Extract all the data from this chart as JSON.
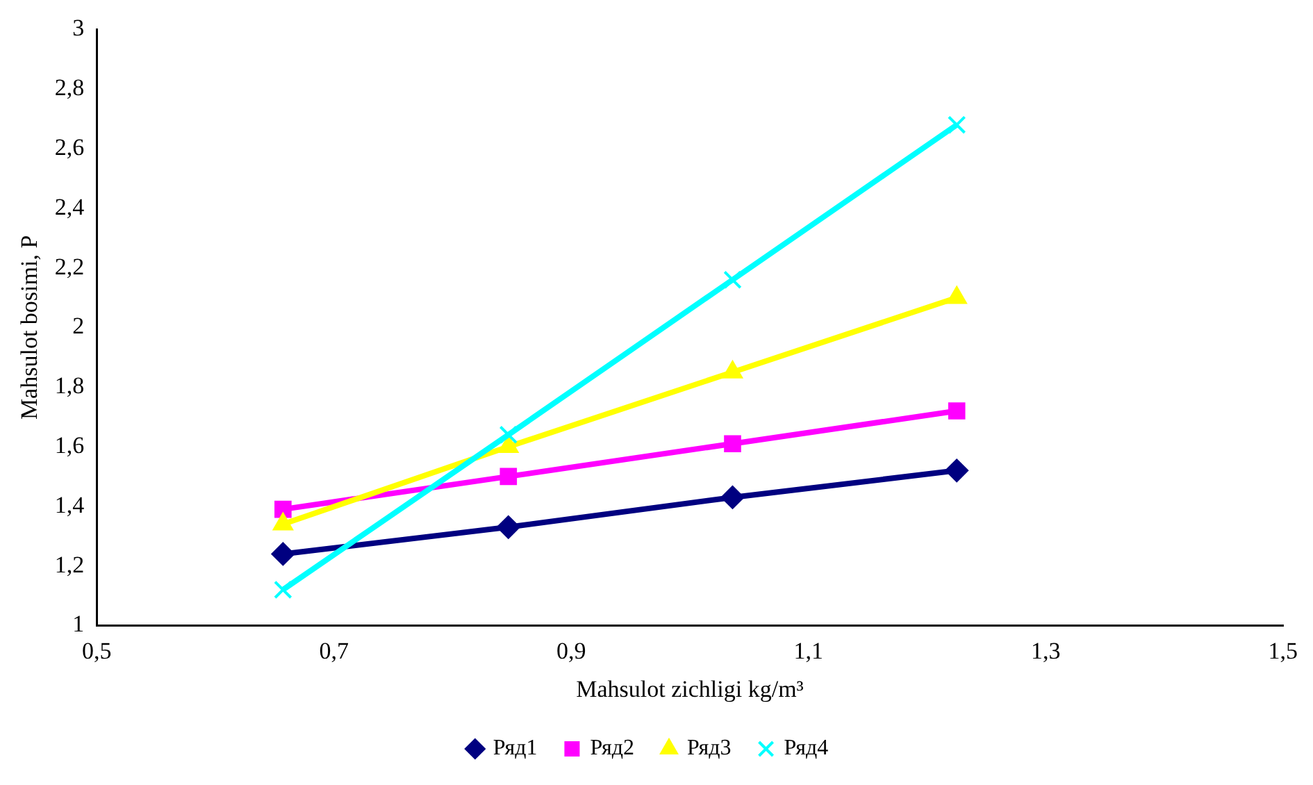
{
  "chart_data": {
    "type": "line",
    "xlabel": "Mahsulot zichligi kg/m³",
    "ylabel": "Mahsulot bosimi, P",
    "x": [
      0.657,
      0.847,
      1.036,
      1.225
    ],
    "series": [
      {
        "name": "Ряд1",
        "color": "#000080",
        "marker": "diamond",
        "values": [
          1.24,
          1.33,
          1.43,
          1.52
        ]
      },
      {
        "name": "Ряд2",
        "color": "#ff00ff",
        "marker": "square",
        "values": [
          1.39,
          1.5,
          1.61,
          1.72
        ]
      },
      {
        "name": "Ряд3",
        "color": "#ffff00",
        "marker": "triangle",
        "values": [
          1.34,
          1.6,
          1.85,
          2.1
        ]
      },
      {
        "name": "Ряд4",
        "color": "#00ffff",
        "marker": "cross",
        "values": [
          1.12,
          1.64,
          2.16,
          2.68
        ]
      }
    ],
    "xlim": [
      0.5,
      1.5
    ],
    "xticks": [
      {
        "value": 0.5,
        "label": "0,5"
      },
      {
        "value": 0.7,
        "label": "0,7"
      },
      {
        "value": 0.9,
        "label": "0,9"
      },
      {
        "value": 1.1,
        "label": "1,1"
      },
      {
        "value": 1.3,
        "label": "1,3"
      },
      {
        "value": 1.5,
        "label": "1,5"
      }
    ],
    "ylim": [
      1,
      3
    ],
    "yticks": [
      1,
      {
        "value": 1.2,
        "label": "1,2"
      },
      {
        "value": 1.4,
        "label": "1,4"
      },
      {
        "value": 1.6,
        "label": "1,6"
      },
      {
        "value": 1.8,
        "label": "1,8"
      },
      2,
      {
        "value": 2.2,
        "label": "2,2"
      },
      {
        "value": 2.4,
        "label": "2,4"
      },
      {
        "value": 2.6,
        "label": "2,6"
      },
      {
        "value": 2.8,
        "label": "2,8"
      },
      3
    ],
    "grid": false,
    "legend": "bottom"
  }
}
